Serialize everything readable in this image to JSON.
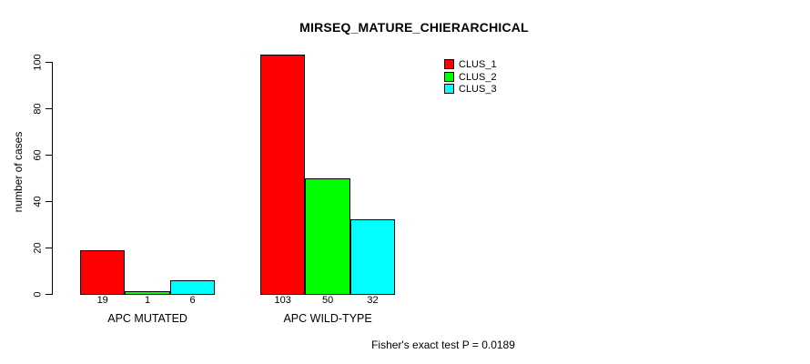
{
  "chart_data": {
    "type": "bar",
    "title": "MIRSEQ_MATURE_CHIERARCHICAL",
    "ylabel": "number of cases",
    "xlabel": "",
    "categories": [
      "APC MUTATED",
      "APC WILD-TYPE"
    ],
    "series": [
      {
        "name": "CLUS_1",
        "color": "#ff0000",
        "values": [
          19,
          103
        ]
      },
      {
        "name": "CLUS_2",
        "color": "#00ff00",
        "values": [
          1,
          50
        ]
      },
      {
        "name": "CLUS_3",
        "color": "#00ffff",
        "values": [
          6,
          32
        ]
      }
    ],
    "yticks": [
      0,
      20,
      40,
      60,
      80,
      100
    ],
    "ylim": [
      0,
      105
    ],
    "grid": false,
    "legend_position": "top-right",
    "bar_border_color": "#000000",
    "background_color": "#ffffff",
    "annotation": "Fisher's exact test P = 0.0189"
  }
}
